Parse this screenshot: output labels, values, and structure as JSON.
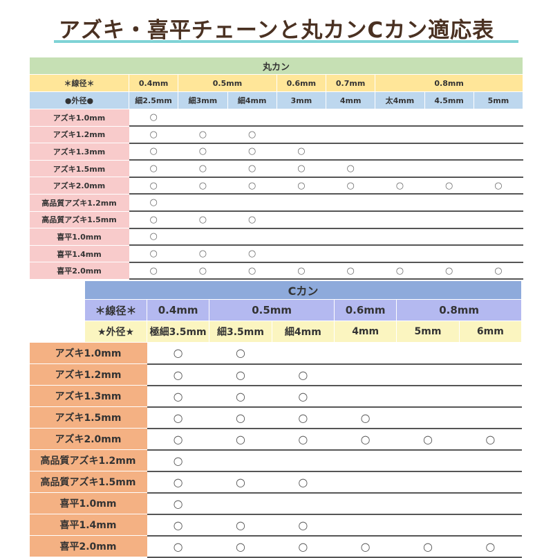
{
  "title": "アズキ・喜平チェーンと丸カンCカン適応表",
  "mark": "○",
  "colors": {
    "title": "#4a3122",
    "underline": "#7fd3d6",
    "t1_title": "#c6e0b4",
    "t1_wire": "#ffe699",
    "t1_outer": "#bdd7ee",
    "t1_label": "#f8cbcb",
    "t2_title": "#8eaadb",
    "t2_wire": "#b4b9f0",
    "t2_outer": "#fbf5c0",
    "t2_label": "#f4b183"
  },
  "round_ring": {
    "title": "丸カン",
    "wire_label": "＊線径＊",
    "wire": [
      {
        "label": "0.4mm",
        "span": 1
      },
      {
        "label": "0.5mm",
        "span": 2
      },
      {
        "label": "0.6mm",
        "span": 1
      },
      {
        "label": "0.7mm",
        "span": 1
      },
      {
        "label": "0.8mm",
        "span": 3
      }
    ],
    "outer_label": "●外径●",
    "outer": [
      "細2.5mm",
      "細3mm",
      "細4mm",
      "3mm",
      "4mm",
      "太4mm",
      "4.5mm",
      "5mm"
    ],
    "rows": [
      {
        "label": "アズキ1.0mm",
        "fit": [
          1,
          0,
          0,
          0,
          0,
          0,
          0,
          0
        ]
      },
      {
        "label": "アズキ1.2mm",
        "fit": [
          1,
          1,
          1,
          0,
          0,
          0,
          0,
          0
        ]
      },
      {
        "label": "アズキ1.3mm",
        "fit": [
          1,
          1,
          1,
          1,
          0,
          0,
          0,
          0
        ]
      },
      {
        "label": "アズキ1.5mm",
        "fit": [
          1,
          1,
          1,
          1,
          1,
          0,
          0,
          0
        ]
      },
      {
        "label": "アズキ2.0mm",
        "fit": [
          1,
          1,
          1,
          1,
          1,
          1,
          1,
          1
        ]
      },
      {
        "label": "高品質アズキ1.2mm",
        "fit": [
          1,
          0,
          0,
          0,
          0,
          0,
          0,
          0
        ]
      },
      {
        "label": "高品質アズキ1.5mm",
        "fit": [
          1,
          1,
          1,
          0,
          0,
          0,
          0,
          0
        ]
      },
      {
        "label": "喜平1.0mm",
        "fit": [
          1,
          0,
          0,
          0,
          0,
          0,
          0,
          0
        ]
      },
      {
        "label": "喜平1.4mm",
        "fit": [
          1,
          1,
          1,
          0,
          0,
          0,
          0,
          0
        ]
      },
      {
        "label": "喜平2.0mm",
        "fit": [
          1,
          1,
          1,
          1,
          1,
          1,
          1,
          1
        ]
      }
    ]
  },
  "c_ring": {
    "title": "Cカン",
    "wire_label": "＊線径＊",
    "wire": [
      {
        "label": "0.4mm",
        "span": 1
      },
      {
        "label": "0.5mm",
        "span": 2
      },
      {
        "label": "0.6mm",
        "span": 1
      },
      {
        "label": "0.8mm",
        "span": 2
      }
    ],
    "outer_label": "★外径★",
    "outer": [
      "極細3.5mm",
      "細3.5mm",
      "細4mm",
      "4mm",
      "5mm",
      "6mm"
    ],
    "rows": [
      {
        "label": "アズキ1.0mm",
        "fit": [
          1,
          1,
          0,
          0,
          0,
          0
        ]
      },
      {
        "label": "アズキ1.2mm",
        "fit": [
          1,
          1,
          1,
          0,
          0,
          0
        ]
      },
      {
        "label": "アズキ1.3mm",
        "fit": [
          1,
          1,
          1,
          0,
          0,
          0
        ]
      },
      {
        "label": "アズキ1.5mm",
        "fit": [
          1,
          1,
          1,
          1,
          0,
          0
        ]
      },
      {
        "label": "アズキ2.0mm",
        "fit": [
          1,
          1,
          1,
          1,
          1,
          1
        ]
      },
      {
        "label": "高品質アズキ1.2mm",
        "fit": [
          1,
          0,
          0,
          0,
          0,
          0
        ]
      },
      {
        "label": "高品質アズキ1.5mm",
        "fit": [
          1,
          1,
          1,
          0,
          0,
          0
        ]
      },
      {
        "label": "喜平1.0mm",
        "fit": [
          1,
          0,
          0,
          0,
          0,
          0
        ]
      },
      {
        "label": "喜平1.4mm",
        "fit": [
          1,
          1,
          1,
          0,
          0,
          0
        ]
      },
      {
        "label": "喜平2.0mm",
        "fit": [
          1,
          1,
          1,
          1,
          1,
          1
        ]
      }
    ]
  }
}
